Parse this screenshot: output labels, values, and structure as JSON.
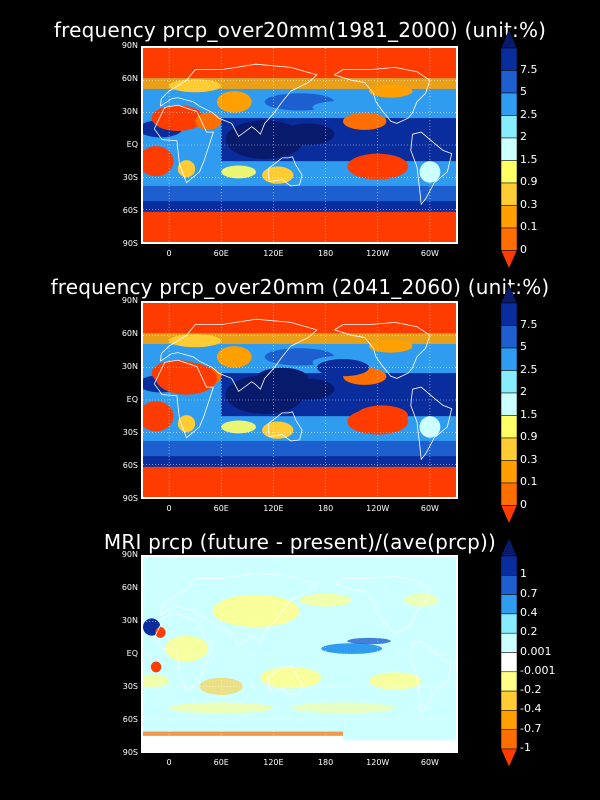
{
  "colors": {
    "p1": [
      "#ff3c00",
      "#ff6e00",
      "#ffa000",
      "#ffcc33",
      "#ffff66",
      "#ccffff",
      "#88ecff",
      "#2f9cf0",
      "#1e5fd0",
      "#0a2d9e",
      "#081a6b"
    ],
    "p3": [
      "#ff3c00",
      "#ff6e00",
      "#ffa000",
      "#ffcc33",
      "#ffff88",
      "#ffffff",
      "#ccffff",
      "#88ecff",
      "#2f9cf0",
      "#1e5fd0",
      "#0a2d9e",
      "#081a6b"
    ]
  },
  "lat_labels": [
    "90N",
    "60N",
    "30N",
    "EQ",
    "30S",
    "60S",
    "90S"
  ],
  "lon_labels": [
    "0",
    "60E",
    "120E",
    "180",
    "120W",
    "60W"
  ],
  "panels": [
    {
      "title": "frequency prcp_over20mm(1981_2000) (unit:%)",
      "cbar_labels": [
        "7.5",
        "5",
        "2.5",
        "2",
        "1.5",
        "0.9",
        "0.3",
        "0.1",
        "0"
      ]
    },
    {
      "title": "frequency prcp_over20mm (2041_2060) (unit:%)",
      "cbar_labels": [
        "7.5",
        "5",
        "2.5",
        "2",
        "1.5",
        "0.9",
        "0.3",
        "0.1",
        "0"
      ]
    },
    {
      "title": "MRI prcp (future - present)/(ave(prcp))",
      "cbar_labels": [
        "1",
        "0.7",
        "0.4",
        "0.2",
        "0.001",
        "-0.001",
        "-0.2",
        "-0.4",
        "-0.7",
        "-1"
      ]
    }
  ]
}
